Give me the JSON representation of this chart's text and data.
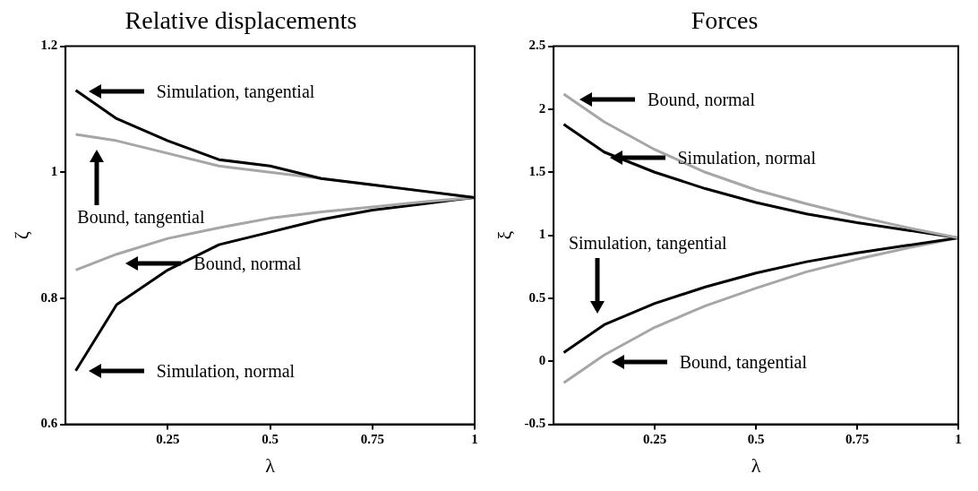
{
  "chart_data": [
    {
      "type": "line",
      "title": "Relative displacements",
      "xlabel": "λ",
      "ylabel": "ζ",
      "x": [
        0.025,
        0.125,
        0.25,
        0.375,
        0.5,
        0.625,
        0.75,
        0.875,
        1
      ],
      "xlim": [
        0,
        1
      ],
      "xticks": [
        0.25,
        0.5,
        0.75,
        1
      ],
      "ylim": [
        0.6,
        1.2
      ],
      "yticks": [
        0.6,
        0.8,
        1,
        1.2
      ],
      "grid": false,
      "legend": false,
      "marker": "none",
      "line_style": "solid",
      "annotations": [
        "Simulation, tangential",
        "Bound, tangential",
        "Bound, normal",
        "Simulation, normal"
      ],
      "series": [
        {
          "color": "#000000",
          "values": [
            1.13,
            1.085,
            1.05,
            1.02,
            1.01,
            0.99,
            0.98,
            0.97,
            0.96
          ]
        },
        {
          "color": "#a6a6a6",
          "values": [
            1.06,
            1.05,
            1.03,
            1.01,
            1.0,
            0.99,
            0.98,
            0.97,
            0.96
          ]
        },
        {
          "color": "#a6a6a6",
          "values": [
            0.845,
            0.87,
            0.895,
            0.912,
            0.927,
            0.937,
            0.945,
            0.953,
            0.96
          ]
        },
        {
          "color": "#000000",
          "values": [
            0.685,
            0.79,
            0.845,
            0.885,
            0.905,
            0.925,
            0.94,
            0.95,
            0.96
          ]
        }
      ]
    },
    {
      "type": "line",
      "title": "Forces",
      "xlabel": "λ",
      "ylabel": "ξ",
      "x": [
        0.025,
        0.125,
        0.25,
        0.375,
        0.5,
        0.625,
        0.75,
        0.875,
        1
      ],
      "xlim": [
        0,
        1
      ],
      "xticks": [
        0.25,
        0.5,
        0.75,
        1
      ],
      "ylim": [
        -0.5,
        2.5
      ],
      "yticks": [
        -0.5,
        0,
        0.5,
        1,
        1.5,
        2,
        2.5
      ],
      "grid": false,
      "legend": false,
      "marker": "none",
      "line_style": "solid",
      "annotations": [
        "Bound, normal",
        "Simulation, normal",
        "Simulation, tangential",
        "Bound, tangential"
      ],
      "series": [
        {
          "color": "#a6a6a6",
          "values": [
            2.12,
            1.9,
            1.68,
            1.5,
            1.36,
            1.25,
            1.15,
            1.06,
            0.98
          ]
        },
        {
          "color": "#000000",
          "values": [
            1.88,
            1.66,
            1.5,
            1.37,
            1.26,
            1.17,
            1.1,
            1.04,
            0.98
          ]
        },
        {
          "color": "#000000",
          "values": [
            0.07,
            0.29,
            0.46,
            0.59,
            0.7,
            0.79,
            0.86,
            0.92,
            0.98
          ]
        },
        {
          "color": "#a6a6a6",
          "values": [
            -0.17,
            0.05,
            0.27,
            0.44,
            0.58,
            0.71,
            0.81,
            0.9,
            0.98
          ]
        }
      ]
    }
  ]
}
